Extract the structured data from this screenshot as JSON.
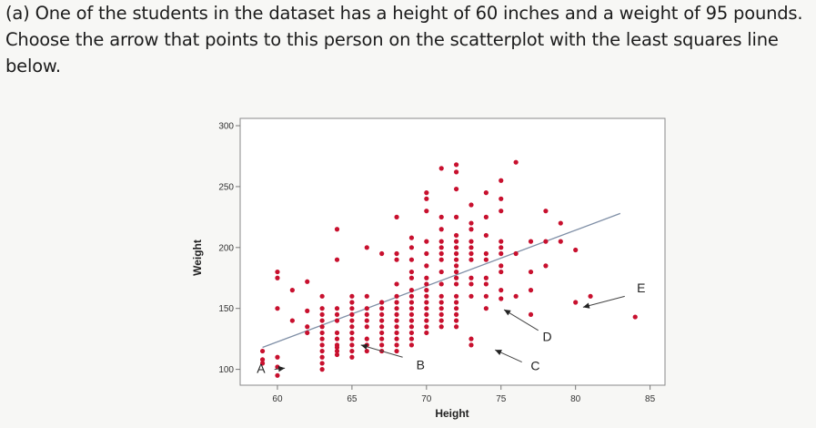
{
  "question": {
    "lines": [
      "(a) One of the students in the dataset has a height of 60 inches and a weight of 95 pounds.",
      "Choose the arrow that points to this person on the scatterplot with the least squares line",
      "below."
    ]
  },
  "chart_data": {
    "type": "scatter",
    "xlabel": "Height",
    "ylabel": "Weight",
    "xlim": [
      57.5,
      86
    ],
    "ylim": [
      87,
      306
    ],
    "xticks": [
      60,
      65,
      70,
      75,
      80,
      85
    ],
    "yticks": [
      100,
      150,
      200,
      250,
      300
    ],
    "grid": false,
    "point_color": "#c8102e",
    "line_color": "#7f8fa6",
    "least_squares_line": {
      "x": [
        59,
        83
      ],
      "y": [
        118,
        228
      ]
    },
    "points": [
      [
        59,
        115
      ],
      [
        59,
        108
      ],
      [
        59,
        105
      ],
      [
        60,
        110
      ],
      [
        60,
        95
      ],
      [
        60,
        102
      ],
      [
        60,
        150
      ],
      [
        60,
        175
      ],
      [
        60,
        180
      ],
      [
        61,
        165
      ],
      [
        61,
        140
      ],
      [
        62,
        172
      ],
      [
        62,
        148
      ],
      [
        62,
        135
      ],
      [
        62,
        130
      ],
      [
        63,
        160
      ],
      [
        63,
        150
      ],
      [
        63,
        145
      ],
      [
        63,
        140
      ],
      [
        63,
        135
      ],
      [
        63,
        130
      ],
      [
        63,
        125
      ],
      [
        63,
        120
      ],
      [
        63,
        115
      ],
      [
        63,
        110
      ],
      [
        63,
        105
      ],
      [
        63,
        100
      ],
      [
        64,
        215
      ],
      [
        64,
        190
      ],
      [
        64,
        150
      ],
      [
        64,
        145
      ],
      [
        64,
        140
      ],
      [
        64,
        130
      ],
      [
        64,
        125
      ],
      [
        64,
        120
      ],
      [
        64,
        118
      ],
      [
        64,
        115
      ],
      [
        64,
        112
      ],
      [
        65,
        160
      ],
      [
        65,
        155
      ],
      [
        65,
        150
      ],
      [
        65,
        145
      ],
      [
        65,
        140
      ],
      [
        65,
        135
      ],
      [
        65,
        130
      ],
      [
        65,
        125
      ],
      [
        65,
        120
      ],
      [
        65,
        115
      ],
      [
        65,
        110
      ],
      [
        66,
        200
      ],
      [
        66,
        160
      ],
      [
        66,
        150
      ],
      [
        66,
        145
      ],
      [
        66,
        140
      ],
      [
        66,
        135
      ],
      [
        66,
        125
      ],
      [
        66,
        120
      ],
      [
        66,
        115
      ],
      [
        67,
        195
      ],
      [
        67,
        155
      ],
      [
        67,
        150
      ],
      [
        67,
        145
      ],
      [
        67,
        140
      ],
      [
        67,
        135
      ],
      [
        67,
        130
      ],
      [
        67,
        125
      ],
      [
        67,
        120
      ],
      [
        67,
        115
      ],
      [
        68,
        225
      ],
      [
        68,
        195
      ],
      [
        68,
        190
      ],
      [
        68,
        170
      ],
      [
        68,
        160
      ],
      [
        68,
        155
      ],
      [
        68,
        150
      ],
      [
        68,
        145
      ],
      [
        68,
        140
      ],
      [
        68,
        135
      ],
      [
        68,
        130
      ],
      [
        68,
        125
      ],
      [
        68,
        120
      ],
      [
        68,
        115
      ],
      [
        69,
        208
      ],
      [
        69,
        200
      ],
      [
        69,
        190
      ],
      [
        69,
        180
      ],
      [
        69,
        175
      ],
      [
        69,
        165
      ],
      [
        69,
        160
      ],
      [
        69,
        155
      ],
      [
        69,
        150
      ],
      [
        69,
        145
      ],
      [
        69,
        140
      ],
      [
        69,
        135
      ],
      [
        69,
        130
      ],
      [
        69,
        125
      ],
      [
        69,
        120
      ],
      [
        70,
        245
      ],
      [
        70,
        240
      ],
      [
        70,
        230
      ],
      [
        70,
        205
      ],
      [
        70,
        195
      ],
      [
        70,
        185
      ],
      [
        70,
        175
      ],
      [
        70,
        170
      ],
      [
        70,
        165
      ],
      [
        70,
        160
      ],
      [
        70,
        155
      ],
      [
        70,
        150
      ],
      [
        70,
        145
      ],
      [
        70,
        140
      ],
      [
        70,
        135
      ],
      [
        70,
        130
      ],
      [
        71,
        265
      ],
      [
        71,
        225
      ],
      [
        71,
        215
      ],
      [
        71,
        205
      ],
      [
        71,
        200
      ],
      [
        71,
        195
      ],
      [
        71,
        190
      ],
      [
        71,
        180
      ],
      [
        71,
        170
      ],
      [
        71,
        160
      ],
      [
        71,
        155
      ],
      [
        71,
        150
      ],
      [
        71,
        145
      ],
      [
        71,
        140
      ],
      [
        71,
        135
      ],
      [
        72,
        268
      ],
      [
        72,
        262
      ],
      [
        72,
        248
      ],
      [
        72,
        225
      ],
      [
        72,
        210
      ],
      [
        72,
        205
      ],
      [
        72,
        200
      ],
      [
        72,
        195
      ],
      [
        72,
        190
      ],
      [
        72,
        185
      ],
      [
        72,
        180
      ],
      [
        72,
        175
      ],
      [
        72,
        170
      ],
      [
        72,
        160
      ],
      [
        72,
        155
      ],
      [
        72,
        150
      ],
      [
        72,
        145
      ],
      [
        72,
        140
      ],
      [
        72,
        135
      ],
      [
        73,
        235
      ],
      [
        73,
        220
      ],
      [
        73,
        215
      ],
      [
        73,
        205
      ],
      [
        73,
        200
      ],
      [
        73,
        195
      ],
      [
        73,
        190
      ],
      [
        73,
        175
      ],
      [
        73,
        170
      ],
      [
        73,
        160
      ],
      [
        73,
        125
      ],
      [
        73,
        120
      ],
      [
        74,
        245
      ],
      [
        74,
        225
      ],
      [
        74,
        210
      ],
      [
        74,
        195
      ],
      [
        74,
        190
      ],
      [
        74,
        175
      ],
      [
        74,
        170
      ],
      [
        74,
        160
      ],
      [
        74,
        150
      ],
      [
        75,
        255
      ],
      [
        75,
        240
      ],
      [
        75,
        230
      ],
      [
        75,
        205
      ],
      [
        75,
        200
      ],
      [
        75,
        195
      ],
      [
        75,
        185
      ],
      [
        75,
        180
      ],
      [
        75,
        165
      ],
      [
        75,
        158
      ],
      [
        76,
        270
      ],
      [
        76,
        195
      ],
      [
        76,
        160
      ],
      [
        77,
        205
      ],
      [
        77,
        180
      ],
      [
        77,
        165
      ],
      [
        77,
        145
      ],
      [
        78,
        230
      ],
      [
        78,
        205
      ],
      [
        78,
        185
      ],
      [
        79,
        220
      ],
      [
        79,
        205
      ],
      [
        80,
        198
      ],
      [
        80,
        155
      ],
      [
        81,
        160
      ],
      [
        84,
        143
      ]
    ],
    "arrows": [
      {
        "label": "A",
        "from": [
          59.8,
          100
        ],
        "to": [
          60.5,
          101
        ],
        "label_at": [
          58.9,
          101
        ]
      },
      {
        "label": "B",
        "from": [
          68.4,
          110
        ],
        "to": [
          65.6,
          120
        ],
        "label_at": [
          69.6,
          104
        ]
      },
      {
        "label": "C",
        "from": [
          76.4,
          106
        ],
        "to": [
          74.6,
          116
        ],
        "label_at": [
          77.3,
          103
        ]
      },
      {
        "label": "D",
        "from": [
          77.5,
          132
        ],
        "to": [
          75.2,
          149
        ],
        "label_at": [
          78.1,
          127
        ]
      },
      {
        "label": "E",
        "from": [
          83.3,
          160
        ],
        "to": [
          80.5,
          151
        ],
        "label_at": [
          84.4,
          167
        ]
      }
    ]
  }
}
